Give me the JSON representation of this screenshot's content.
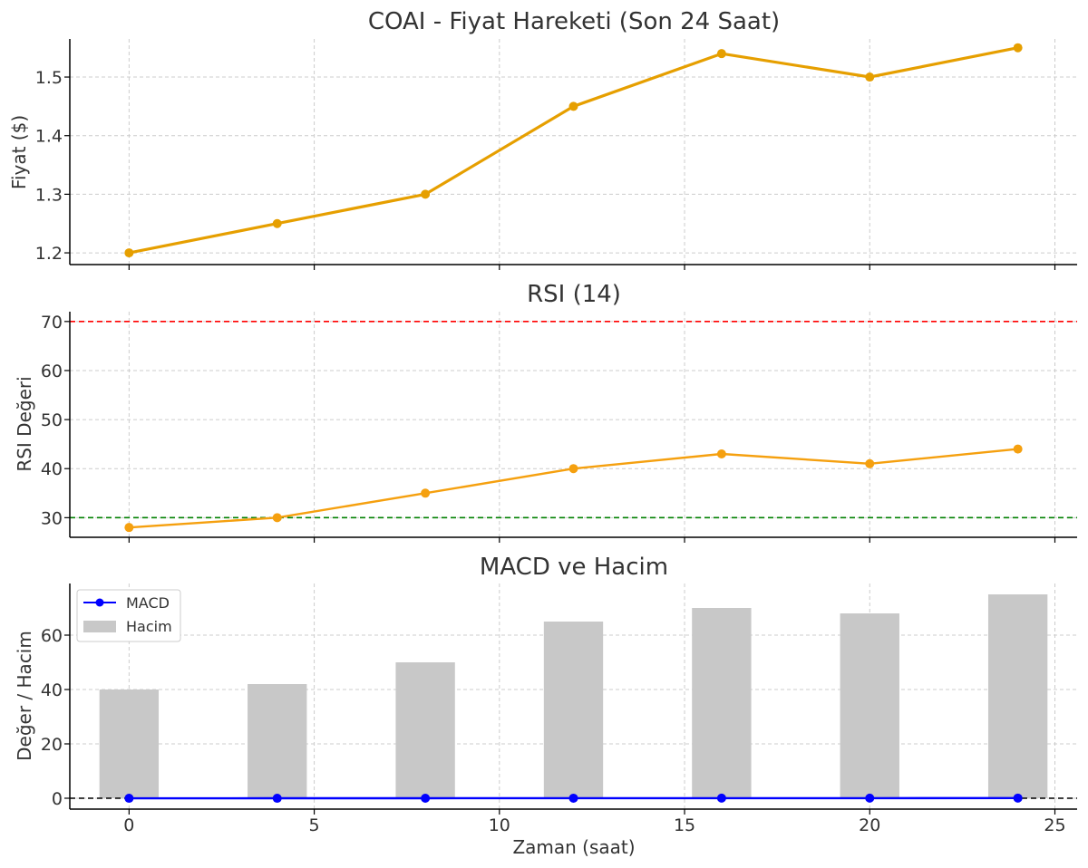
{
  "chart_data": [
    {
      "type": "line",
      "title": "COAI - Fiyat Hareketi (Son 24 Saat)",
      "xlabel": "",
      "ylabel": "Fiyat ($)",
      "xlim": [
        -1.6,
        25.6
      ],
      "ylim": [
        1.18,
        1.565
      ],
      "xticks": [
        0,
        5,
        10,
        15,
        20,
        25
      ],
      "yticks": [
        1.2,
        1.3,
        1.4,
        1.5
      ],
      "ytick_labels": [
        "1.2",
        "1.3",
        "1.4",
        "1.5"
      ],
      "grid": true,
      "series": [
        {
          "color": "#E69F00",
          "x": [
            0,
            4,
            8,
            12,
            16,
            20,
            24
          ],
          "y": [
            1.2,
            1.25,
            1.3,
            1.45,
            1.54,
            1.5,
            1.55
          ]
        }
      ]
    },
    {
      "type": "line",
      "title": "RSI (14)",
      "xlabel": "",
      "ylabel": "RSI Değeri",
      "xlim": [
        -1.6,
        25.6
      ],
      "ylim": [
        26,
        72
      ],
      "xticks": [
        0,
        5,
        10,
        15,
        20,
        25
      ],
      "yticks": [
        30,
        40,
        50,
        60,
        70
      ],
      "ytick_labels": [
        "30",
        "40",
        "50",
        "60",
        "70"
      ],
      "grid": true,
      "hlines": [
        {
          "y": 70,
          "color": "#ff0000"
        },
        {
          "y": 30,
          "color": "#008000"
        }
      ],
      "series": [
        {
          "color": "#F5A00F",
          "x": [
            0,
            4,
            8,
            12,
            16,
            20,
            24
          ],
          "y": [
            28,
            30,
            35,
            40,
            43,
            41,
            44
          ]
        }
      ]
    },
    {
      "type": "bar",
      "title": "MACD ve Hacim",
      "xlabel": "Zaman (saat)",
      "ylabel": "Değer / Hacim",
      "xlim": [
        -1.6,
        25.6
      ],
      "ylim": [
        -4,
        79
      ],
      "xticks": [
        0,
        5,
        10,
        15,
        20,
        25
      ],
      "xtick_labels": [
        "0",
        "5",
        "10",
        "15",
        "20",
        "25"
      ],
      "yticks": [
        0,
        20,
        40,
        60
      ],
      "ytick_labels": [
        "0",
        "20",
        "40",
        "60"
      ],
      "grid": true,
      "legend_position": "top-left",
      "hlines": [
        {
          "y": 0,
          "color": "#000000"
        }
      ],
      "x": [
        0,
        4,
        8,
        12,
        16,
        20,
        24
      ],
      "series": [
        {
          "name": "MACD",
          "type": "line",
          "color": "#0000ff",
          "values": [
            -0.02,
            -0.01,
            0.0,
            0.02,
            0.05,
            0.04,
            0.06
          ]
        },
        {
          "name": "Hacim",
          "type": "bar",
          "color": "#c8c8c8",
          "values": [
            40,
            42,
            50,
            65,
            70,
            68,
            75
          ]
        }
      ]
    }
  ]
}
